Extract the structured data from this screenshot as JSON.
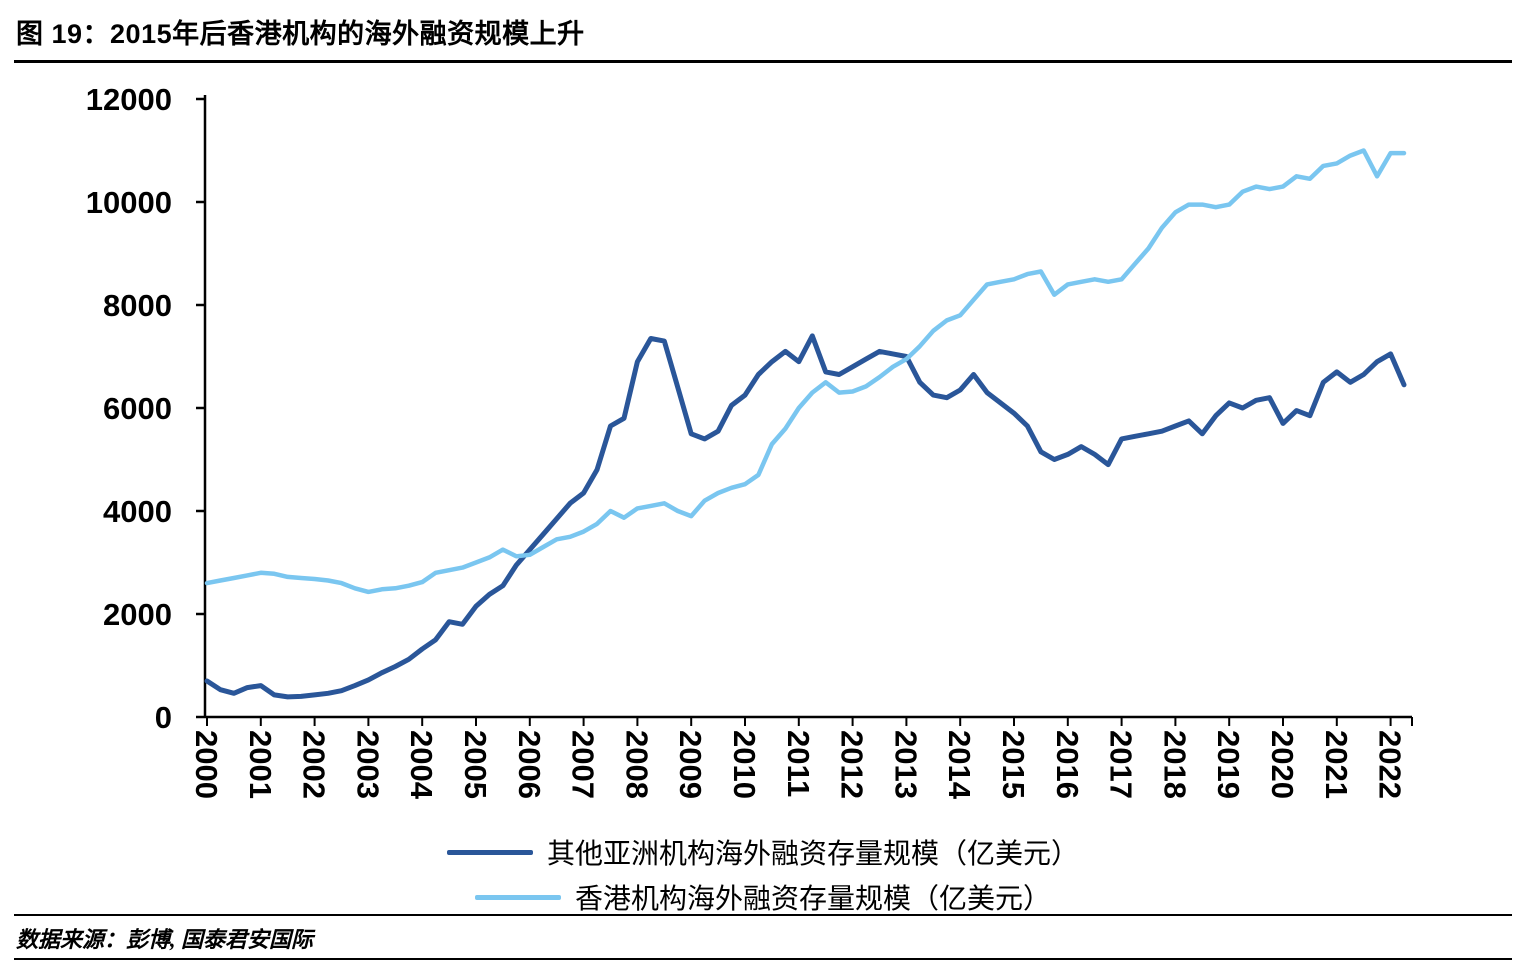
{
  "header": {
    "title": "图 19：2015年后香港机构的海外融资规模上升"
  },
  "footer": {
    "source": "数据来源：彭博, 国泰君安国际"
  },
  "colors": {
    "series_other_asia": "#2A5699",
    "series_hong_kong": "#7AC6F0",
    "axis": "#000000"
  },
  "legend": [
    {
      "key": "other-asia",
      "label": "其他亚洲机构海外融资存量规模（亿美元）",
      "color": "#2A5699"
    },
    {
      "key": "hong-kong",
      "label": "香港机构海外融资存量规模（亿美元）",
      "color": "#7AC6F0"
    }
  ],
  "chart_data": {
    "type": "line",
    "title": "图 19：2015年后香港机构的海外融资规模上升",
    "xlabel": "",
    "ylabel": "",
    "ylim": [
      0,
      12000
    ],
    "y_ticks": [
      0,
      2000,
      4000,
      6000,
      8000,
      10000,
      12000
    ],
    "x_tick_years": [
      "2000",
      "2001",
      "2002",
      "2003",
      "2004",
      "2005",
      "2006",
      "2007",
      "2008",
      "2009",
      "2010",
      "2011",
      "2012",
      "2013",
      "2014",
      "2015",
      "2016",
      "2017",
      "2018",
      "2019",
      "2020",
      "2021",
      "2022"
    ],
    "grid": false,
    "legend_position": "bottom",
    "x": [
      2000,
      2000.25,
      2000.5,
      2000.75,
      2001,
      2001.25,
      2001.5,
      2001.75,
      2002,
      2002.25,
      2002.5,
      2002.75,
      2003,
      2003.25,
      2003.5,
      2003.75,
      2004,
      2004.25,
      2004.5,
      2004.75,
      2005,
      2005.25,
      2005.5,
      2005.75,
      2006,
      2006.25,
      2006.5,
      2006.75,
      2007,
      2007.25,
      2007.5,
      2007.75,
      2008,
      2008.25,
      2008.5,
      2008.75,
      2009,
      2009.25,
      2009.5,
      2009.75,
      2010,
      2010.25,
      2010.5,
      2010.75,
      2011,
      2011.25,
      2011.5,
      2011.75,
      2012,
      2012.25,
      2012.5,
      2012.75,
      2013,
      2013.25,
      2013.5,
      2013.75,
      2014,
      2014.25,
      2014.5,
      2014.75,
      2015,
      2015.25,
      2015.5,
      2015.75,
      2016,
      2016.25,
      2016.5,
      2016.75,
      2017,
      2017.25,
      2017.5,
      2017.75,
      2018,
      2018.25,
      2018.5,
      2018.75,
      2019,
      2019.25,
      2019.5,
      2019.75,
      2020,
      2020.25,
      2020.5,
      2020.75,
      2021,
      2021.25,
      2021.5,
      2021.75,
      2022,
      2022.25
    ],
    "series": [
      {
        "key": "other-asia",
        "name": "其他亚洲机构海外融资存量规模（亿美元）",
        "color": "#2A5699",
        "stroke_width": 5,
        "values": [
          700,
          530,
          460,
          570,
          610,
          430,
          390,
          400,
          430,
          460,
          510,
          610,
          720,
          860,
          980,
          1120,
          1320,
          1500,
          1850,
          1800,
          2150,
          2380,
          2550,
          2950,
          3250,
          3550,
          3850,
          4150,
          4350,
          4800,
          5650,
          5800,
          6900,
          7350,
          7300,
          6400,
          5500,
          5400,
          5550,
          6050,
          6250,
          6650,
          6900,
          7100,
          6900,
          7400,
          6700,
          6650,
          6800,
          6950,
          7100,
          7050,
          7000,
          6500,
          6250,
          6200,
          6350,
          6650,
          6300,
          6100,
          5900,
          5650,
          5150,
          5000,
          5100,
          5250,
          5100,
          4900,
          5400,
          5450,
          5500,
          5550,
          5650,
          5750,
          5500,
          5850,
          6100,
          6000,
          6150,
          6200,
          5700,
          5950,
          5850,
          6500,
          6700,
          6500,
          6650,
          6900,
          7050,
          6450
        ]
      },
      {
        "key": "hong-kong",
        "name": "香港机构海外融资存量规模（亿美元）",
        "color": "#7AC6F0",
        "stroke_width": 4.5,
        "values": [
          2600,
          2650,
          2700,
          2750,
          2800,
          2780,
          2720,
          2700,
          2680,
          2650,
          2600,
          2500,
          2430,
          2480,
          2500,
          2550,
          2620,
          2800,
          2850,
          2900,
          3000,
          3100,
          3250,
          3120,
          3150,
          3300,
          3450,
          3500,
          3600,
          3750,
          4000,
          3870,
          4050,
          4100,
          4150,
          4000,
          3900,
          4200,
          4350,
          4450,
          4520,
          4700,
          5300,
          5600,
          6000,
          6300,
          6500,
          6300,
          6320,
          6420,
          6600,
          6800,
          6950,
          7200,
          7500,
          7700,
          7800,
          8100,
          8400,
          8450,
          8500,
          8600,
          8650,
          8200,
          8400,
          8450,
          8500,
          8450,
          8500,
          8800,
          9100,
          9500,
          9800,
          9950,
          9950,
          9900,
          9950,
          10200,
          10300,
          10250,
          10300,
          10500,
          10450,
          10700,
          10750,
          10900,
          11000,
          10500,
          10950,
          10950
        ]
      }
    ]
  }
}
